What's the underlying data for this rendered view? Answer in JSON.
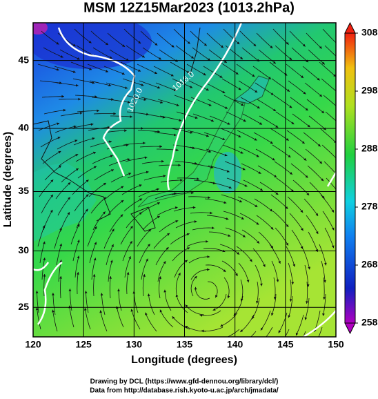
{
  "title": "MSM 12Z15Mar2023 (1013.2hPa)",
  "xlabel": "Longitude (degrees)",
  "ylabel": "Latitude  (degrees)",
  "xlim": [
    120,
    150
  ],
  "xticks": [
    120,
    125,
    130,
    135,
    140,
    145,
    150
  ],
  "ylim": [
    22.3,
    47.6
  ],
  "yticks": [
    25,
    30,
    35,
    40,
    45
  ],
  "colorbar": {
    "lim": [
      258,
      308
    ],
    "ticks": [
      258,
      268,
      278,
      288,
      298,
      308
    ]
  },
  "contour_labels": [
    "1020.0",
    "1016.0"
  ],
  "credits": [
    "Drawing by DCL (https://www.gfd-dennou.org/library/dcl/)",
    "Data from http://database.rish.kyoto-u.ac.jp/arch/jmadata/"
  ]
}
